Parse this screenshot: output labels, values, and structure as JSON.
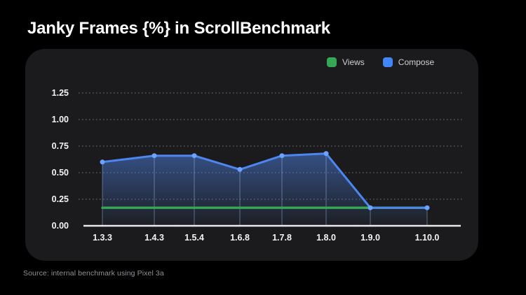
{
  "title": "Janky Frames {%} in ScrollBenchmark",
  "footer": "Source: internal benchmark using Pixel 3a",
  "legend": [
    {
      "label": "Views",
      "color": "#34a853"
    },
    {
      "label": "Compose",
      "color": "#4285f4"
    }
  ],
  "colors": {
    "page_background": "#000000",
    "card_background": "#1b1b1d",
    "views_green": "#34a853",
    "compose_blue": "#4285f4",
    "compose_line": "#4d86f0",
    "compose_dot": "#6aa2ff",
    "axis_line": "#e8eaed"
  },
  "chart_data": {
    "type": "line",
    "title": "Janky Frames {%} in ScrollBenchmark",
    "categories": [
      "1.3.3",
      "1.4.3",
      "1.5.4",
      "1.6.8",
      "1.7.8",
      "1.8.0",
      "1.9.0",
      "1.10.0"
    ],
    "series": [
      {
        "name": "Views",
        "color": "#34a853",
        "values": [
          0.17,
          0.17,
          0.17,
          0.17,
          0.17,
          0.17,
          0.17,
          0.17
        ],
        "markers": false,
        "area": false
      },
      {
        "name": "Compose",
        "color": "#4d86f0",
        "values": [
          0.6,
          0.66,
          0.66,
          0.53,
          0.66,
          0.68,
          0.17,
          0.17
        ],
        "markers": true,
        "area": true
      }
    ],
    "xlabel": "",
    "ylabel": "",
    "ylim": [
      0,
      1.25
    ],
    "yticks": [
      "0.00",
      "0.25",
      "0.50",
      "0.75",
      "1.00",
      "1.25"
    ],
    "grid": "horizontal-dotted",
    "legend_position": "top-right"
  }
}
